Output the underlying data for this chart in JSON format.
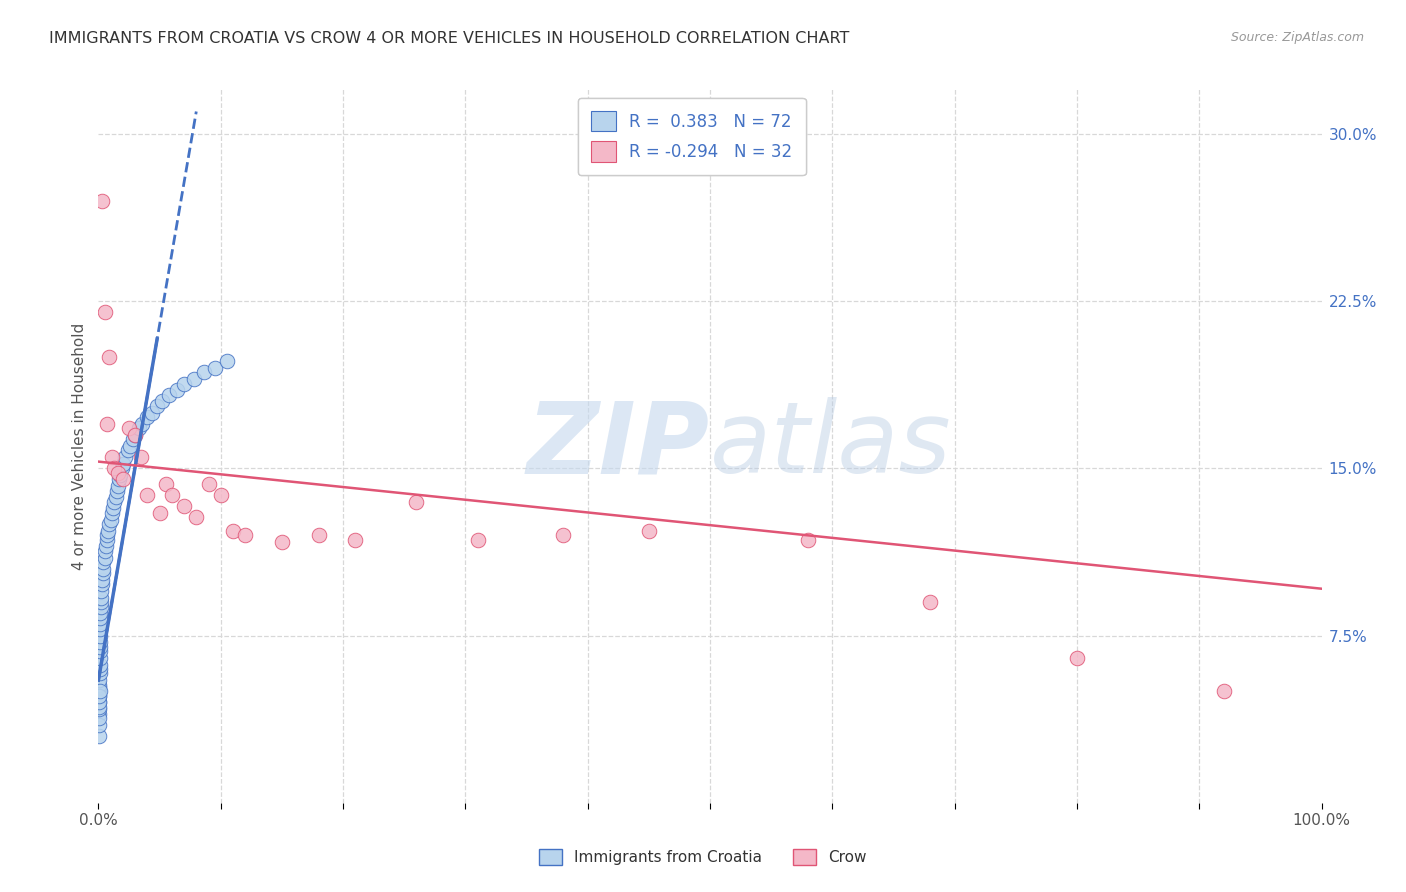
{
  "title": "IMMIGRANTS FROM CROATIA VS CROW 4 OR MORE VEHICLES IN HOUSEHOLD CORRELATION CHART",
  "source": "Source: ZipAtlas.com",
  "ylabel": "4 or more Vehicles in Household",
  "xmin": 0.0,
  "xmax": 1.0,
  "ymin": 0.0,
  "ymax": 0.32,
  "legend_label1": "Immigrants from Croatia",
  "legend_label2": "Crow",
  "R1": "0.383",
  "N1": "72",
  "R2": "-0.294",
  "N2": "32",
  "color1": "#b8d4ed",
  "color2": "#f4b8c8",
  "line_color1": "#4472c4",
  "line_color2": "#e05575",
  "bg_color": "#ffffff",
  "grid_color": "#d8d8d8",
  "title_color": "#333333",
  "source_color": "#999999",
  "right_tick_color": "#4472c4",
  "blue_scatter_x": [
    0.0002,
    0.0002,
    0.0003,
    0.0003,
    0.0004,
    0.0004,
    0.0005,
    0.0005,
    0.0006,
    0.0006,
    0.0007,
    0.0007,
    0.0008,
    0.0008,
    0.0009,
    0.0009,
    0.001,
    0.001,
    0.001,
    0.001,
    0.001,
    0.001,
    0.0012,
    0.0013,
    0.0015,
    0.0015,
    0.0017,
    0.002,
    0.002,
    0.0022,
    0.0025,
    0.003,
    0.003,
    0.0035,
    0.004,
    0.004,
    0.005,
    0.005,
    0.006,
    0.007,
    0.007,
    0.008,
    0.009,
    0.01,
    0.011,
    0.012,
    0.013,
    0.014,
    0.015,
    0.016,
    0.017,
    0.018,
    0.019,
    0.02,
    0.022,
    0.024,
    0.026,
    0.028,
    0.03,
    0.033,
    0.036,
    0.04,
    0.044,
    0.048,
    0.052,
    0.058,
    0.064,
    0.07,
    0.078,
    0.086,
    0.095,
    0.105
  ],
  "blue_scatter_y": [
    0.04,
    0.03,
    0.05,
    0.035,
    0.045,
    0.038,
    0.048,
    0.042,
    0.052,
    0.043,
    0.053,
    0.045,
    0.055,
    0.048,
    0.058,
    0.05,
    0.06,
    0.062,
    0.065,
    0.068,
    0.07,
    0.072,
    0.075,
    0.078,
    0.08,
    0.083,
    0.085,
    0.088,
    0.09,
    0.092,
    0.095,
    0.098,
    0.1,
    0.103,
    0.105,
    0.108,
    0.11,
    0.113,
    0.115,
    0.118,
    0.12,
    0.122,
    0.125,
    0.127,
    0.13,
    0.132,
    0.135,
    0.137,
    0.14,
    0.142,
    0.145,
    0.147,
    0.15,
    0.152,
    0.155,
    0.158,
    0.16,
    0.163,
    0.165,
    0.168,
    0.17,
    0.173,
    0.175,
    0.178,
    0.18,
    0.183,
    0.185,
    0.188,
    0.19,
    0.193,
    0.195,
    0.198
  ],
  "pink_scatter_x": [
    0.003,
    0.005,
    0.007,
    0.009,
    0.011,
    0.013,
    0.016,
    0.02,
    0.025,
    0.03,
    0.035,
    0.04,
    0.05,
    0.055,
    0.06,
    0.07,
    0.08,
    0.09,
    0.1,
    0.11,
    0.12,
    0.15,
    0.18,
    0.21,
    0.26,
    0.31,
    0.38,
    0.45,
    0.58,
    0.68,
    0.8,
    0.92
  ],
  "pink_scatter_y": [
    0.27,
    0.22,
    0.17,
    0.2,
    0.155,
    0.15,
    0.148,
    0.145,
    0.168,
    0.165,
    0.155,
    0.138,
    0.13,
    0.143,
    0.138,
    0.133,
    0.128,
    0.143,
    0.138,
    0.122,
    0.12,
    0.117,
    0.12,
    0.118,
    0.135,
    0.118,
    0.12,
    0.122,
    0.118,
    0.09,
    0.065,
    0.05
  ],
  "pink_line_x0": 0.0,
  "pink_line_y0": 0.153,
  "pink_line_x1": 1.0,
  "pink_line_y1": 0.096,
  "blue_line_x0": 0.0,
  "blue_line_y0": 0.055,
  "blue_line_x1": 0.08,
  "blue_line_y1": 0.31
}
